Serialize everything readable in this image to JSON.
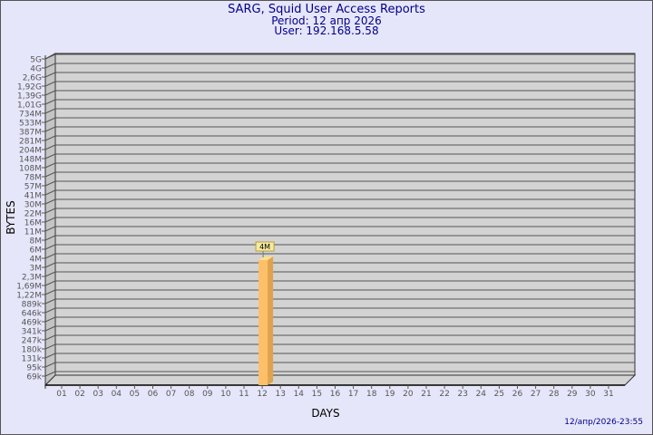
{
  "header": {
    "title": "SARG, Squid User Access Reports",
    "period": "Period: 12 апр 2026",
    "user": "User: 192.168.5.58"
  },
  "footer": {
    "timestamp": "12/апр/2026-23:55"
  },
  "colors": {
    "background": "#e6e6fa",
    "plot": "#d3d3d3",
    "bar": "#fdc068",
    "bar_side": "#e0a24c",
    "title": "#00008b",
    "label_box": "#f5eaa0"
  },
  "chart_data": {
    "type": "bar",
    "xlabel": "DAYS",
    "ylabel": "BYTES",
    "y_scale": "log",
    "grid": true,
    "y_ticks": [
      "5G",
      "4G",
      "2,6G",
      "1,92G",
      "1,39G",
      "1,01G",
      "734M",
      "533M",
      "387M",
      "281M",
      "204M",
      "148M",
      "108M",
      "78M",
      "57M",
      "41M",
      "30M",
      "22M",
      "16M",
      "11M",
      "8M",
      "6M",
      "4M",
      "3M",
      "2,3M",
      "1,69M",
      "1,22M",
      "889k",
      "646k",
      "469k",
      "341k",
      "247k",
      "180k",
      "131k",
      "95k",
      "69k"
    ],
    "categories": [
      "01",
      "02",
      "03",
      "04",
      "05",
      "06",
      "07",
      "08",
      "09",
      "10",
      "11",
      "12",
      "13",
      "14",
      "15",
      "16",
      "17",
      "18",
      "19",
      "20",
      "21",
      "22",
      "23",
      "24",
      "25",
      "26",
      "27",
      "28",
      "29",
      "30",
      "31"
    ],
    "bars": [
      {
        "day": "12",
        "label": "4M",
        "tick_level": 22.6
      }
    ]
  }
}
